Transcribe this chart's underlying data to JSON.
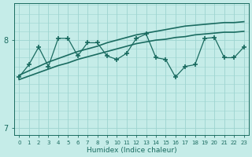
{
  "xlabel": "Humidex (Indice chaleur)",
  "background_color": "#c5ece8",
  "grid_color": "#9dd4cf",
  "line_color": "#1a6b60",
  "xlim": [
    -0.5,
    23.5
  ],
  "ylim": [
    6.92,
    8.42
  ],
  "yticks": [
    7.0,
    8.0
  ],
  "xticks": [
    0,
    1,
    2,
    3,
    4,
    5,
    6,
    7,
    8,
    9,
    10,
    11,
    12,
    13,
    14,
    15,
    16,
    17,
    18,
    19,
    20,
    21,
    22,
    23
  ],
  "line1_x": [
    0,
    1,
    2,
    3,
    4,
    5,
    6,
    7,
    8,
    9,
    10,
    11,
    12,
    13,
    14,
    15,
    16,
    17,
    18,
    19,
    20,
    21,
    22,
    23
  ],
  "line1_y": [
    7.6,
    7.65,
    7.7,
    7.75,
    7.79,
    7.83,
    7.87,
    7.9,
    7.93,
    7.97,
    8.0,
    8.03,
    8.06,
    8.08,
    8.1,
    8.12,
    8.14,
    8.16,
    8.17,
    8.18,
    8.19,
    8.2,
    8.2,
    8.21
  ],
  "line2_x": [
    0,
    1,
    2,
    3,
    4,
    5,
    6,
    7,
    8,
    9,
    10,
    11,
    12,
    13,
    14,
    15,
    16,
    17,
    18,
    19,
    20,
    21,
    22,
    23
  ],
  "line2_y": [
    7.55,
    7.59,
    7.63,
    7.67,
    7.71,
    7.74,
    7.78,
    7.81,
    7.84,
    7.87,
    7.9,
    7.93,
    7.96,
    7.98,
    8.0,
    8.01,
    8.03,
    8.04,
    8.06,
    8.07,
    8.08,
    8.09,
    8.09,
    8.1
  ],
  "line3_x": [
    0,
    1,
    2,
    3,
    4,
    5,
    6,
    7,
    8,
    9,
    10,
    11,
    12,
    13,
    14,
    15,
    16,
    17,
    18,
    19,
    20,
    21,
    22,
    23
  ],
  "line3_y": [
    7.58,
    7.72,
    7.92,
    7.7,
    8.02,
    8.02,
    7.82,
    7.97,
    7.97,
    7.82,
    7.78,
    7.85,
    8.02,
    8.07,
    7.8,
    7.78,
    7.58,
    7.7,
    7.72,
    8.02,
    8.03,
    7.8,
    7.8,
    7.92
  ]
}
